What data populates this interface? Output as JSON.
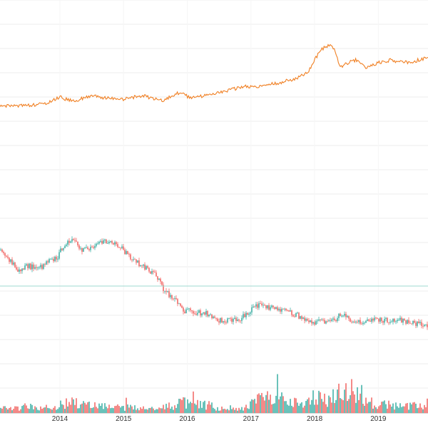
{
  "chart_data": {
    "type": "line",
    "title": "",
    "xlabel": "",
    "ylabel": "",
    "x_ticks": [
      "2014",
      "2015",
      "2016",
      "2017",
      "2018",
      "2019"
    ],
    "x_range": [
      2013.06,
      2019.78
    ],
    "grid": true,
    "colors": {
      "upper_series": "#f07f22",
      "candle_up": "#26a69a",
      "candle_down": "#ef5350",
      "price_marker_line": "#9fd8d0",
      "grid": "#eeeeee"
    },
    "series": [
      {
        "panel": "upper",
        "style": "line",
        "x": [
          2013.06,
          2013.3,
          2013.6,
          2013.8,
          2014.0,
          2014.2,
          2014.5,
          2014.75,
          2015.0,
          2015.3,
          2015.6,
          2015.9,
          2016.05,
          2016.3,
          2016.6,
          2016.9,
          2017.1,
          2017.4,
          2017.7,
          2017.9,
          2017.98,
          2018.1,
          2018.25,
          2018.32,
          2018.4,
          2018.5,
          2018.65,
          2018.8,
          2019.0,
          2019.2,
          2019.4,
          2019.6,
          2019.78
        ],
        "y": [
          150,
          148,
          147,
          145,
          136,
          142,
          134,
          138,
          139,
          134,
          141,
          129,
          138,
          133,
          128,
          121,
          122,
          117,
          110,
          101,
          86,
          70,
          61,
          71,
          95,
          89,
          84,
          95,
          88,
          84,
          88,
          85,
          80
        ]
      },
      {
        "panel": "lower",
        "style": "candlestick",
        "x": [
          2013.06,
          2013.2,
          2013.35,
          2013.5,
          2013.65,
          2013.8,
          2013.95,
          2014.05,
          2014.2,
          2014.35,
          2014.55,
          2014.75,
          2014.95,
          2015.1,
          2015.3,
          2015.5,
          2015.65,
          2015.8,
          2015.95,
          2016.1,
          2016.3,
          2016.5,
          2016.65,
          2016.8,
          2016.95,
          2017.1,
          2017.25,
          2017.4,
          2017.6,
          2017.8,
          2018.0,
          2018.15,
          2018.3,
          2018.45,
          2018.6,
          2018.75,
          2018.9,
          2019.05,
          2019.2,
          2019.35,
          2019.5,
          2019.65,
          2019.78
        ],
        "y": [
          350,
          365,
          378,
          372,
          378,
          368,
          362,
          345,
          333,
          352,
          343,
          338,
          345,
          362,
          372,
          386,
          408,
          420,
          435,
          437,
          440,
          450,
          448,
          449,
          437,
          428,
          430,
          433,
          437,
          445,
          452,
          451,
          448,
          440,
          450,
          452,
          447,
          448,
          450,
          448,
          452,
          455,
          456
        ]
      },
      {
        "panel": "volume",
        "style": "bar",
        "x": [
          2013.1,
          2013.5,
          2013.9,
          2014.1,
          2014.5,
          2014.9,
          2015.3,
          2015.7,
          2016.05,
          2016.5,
          2016.9,
          2017.2,
          2017.6,
          2017.85,
          2018.05,
          2018.25,
          2018.5,
          2018.7,
          2019.0,
          2019.4,
          2019.7
        ],
        "y": [
          8,
          12,
          9,
          20,
          14,
          11,
          9,
          12,
          22,
          10,
          8,
          30,
          22,
          14,
          35,
          24,
          48,
          28,
          15,
          14,
          12
        ]
      }
    ],
    "reference_line": {
      "panel": "lower",
      "y": 401
    }
  }
}
